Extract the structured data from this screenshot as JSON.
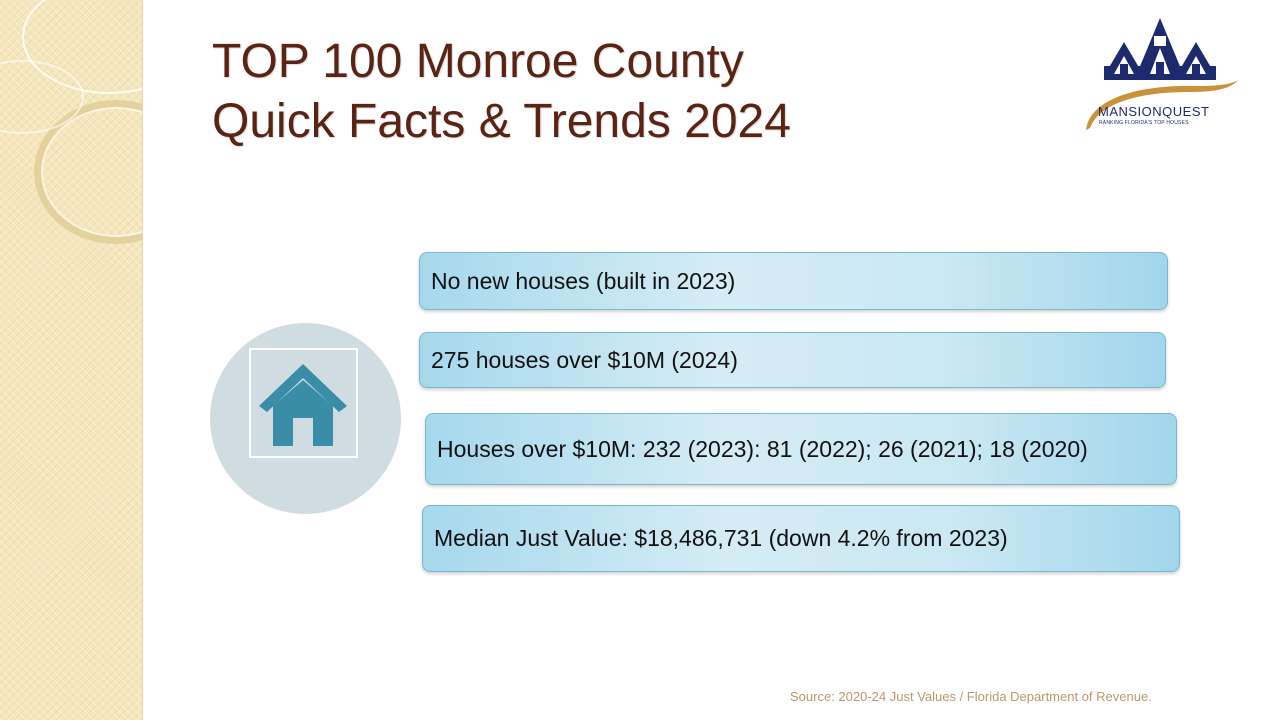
{
  "title": {
    "line1": "TOP 100 Monroe County",
    "line2": "Quick Facts & Trends 2024"
  },
  "logo": {
    "name": "MANSIONQUEST",
    "tagline": "RANKING FLORIDA'S TOP HOUSES"
  },
  "facts": [
    "No new houses (built in 2023)",
    "275 houses over $10M (2024)",
    "Houses over $10M: 232 (2023): 81 (2022); 26 (2021); 18 (2020)",
    "Median Just Value: $18,486,731 (down 4.2% from 2023)"
  ],
  "source": "Source: 2020-24 Just Values / Florida Department of Revenue.",
  "icons": {
    "house": "house-icon",
    "logo": "mansionquest-logo"
  },
  "colors": {
    "title": "#5a2313",
    "fact_box": "#a6d8ec",
    "house_icon": "#3a8da6",
    "circle": "#cfdde3",
    "logo_blue": "#1e2a6e",
    "logo_swoosh": "#c8913a"
  }
}
